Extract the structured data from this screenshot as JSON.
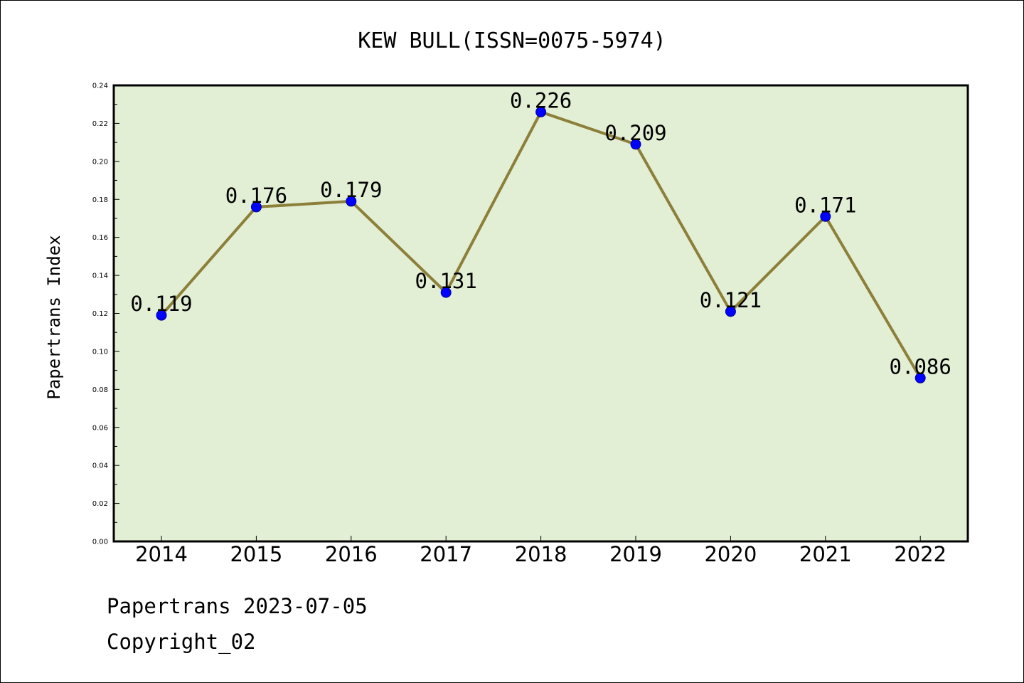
{
  "chart_data": {
    "type": "line",
    "title": "KEW BULL(ISSN=0075-5974)",
    "xlabel": "",
    "ylabel": "Papertrans Index",
    "categories": [
      "2014",
      "2015",
      "2016",
      "2017",
      "2018",
      "2019",
      "2020",
      "2021",
      "2022"
    ],
    "values": [
      0.119,
      0.176,
      0.179,
      0.131,
      0.226,
      0.209,
      0.121,
      0.171,
      0.086
    ],
    "data_labels": [
      "0.119",
      "0.176",
      "0.179",
      "0.131",
      "0.226",
      "0.209",
      "0.121",
      "0.171",
      "0.086"
    ],
    "ylim": [
      0,
      0.24
    ],
    "yticks": [
      "0.00",
      "0.02",
      "0.04",
      "0.06",
      "0.08",
      "0.10",
      "0.12",
      "0.14",
      "0.16",
      "0.18",
      "0.20",
      "0.22",
      "0.24"
    ],
    "grid": false,
    "colors": {
      "plot_background": "#e2efd4",
      "line": "#8c7f3a",
      "marker": "#0000ff"
    }
  },
  "footer": {
    "line1": "Papertrans 2023-07-05",
    "line2": "Copyright_02"
  }
}
